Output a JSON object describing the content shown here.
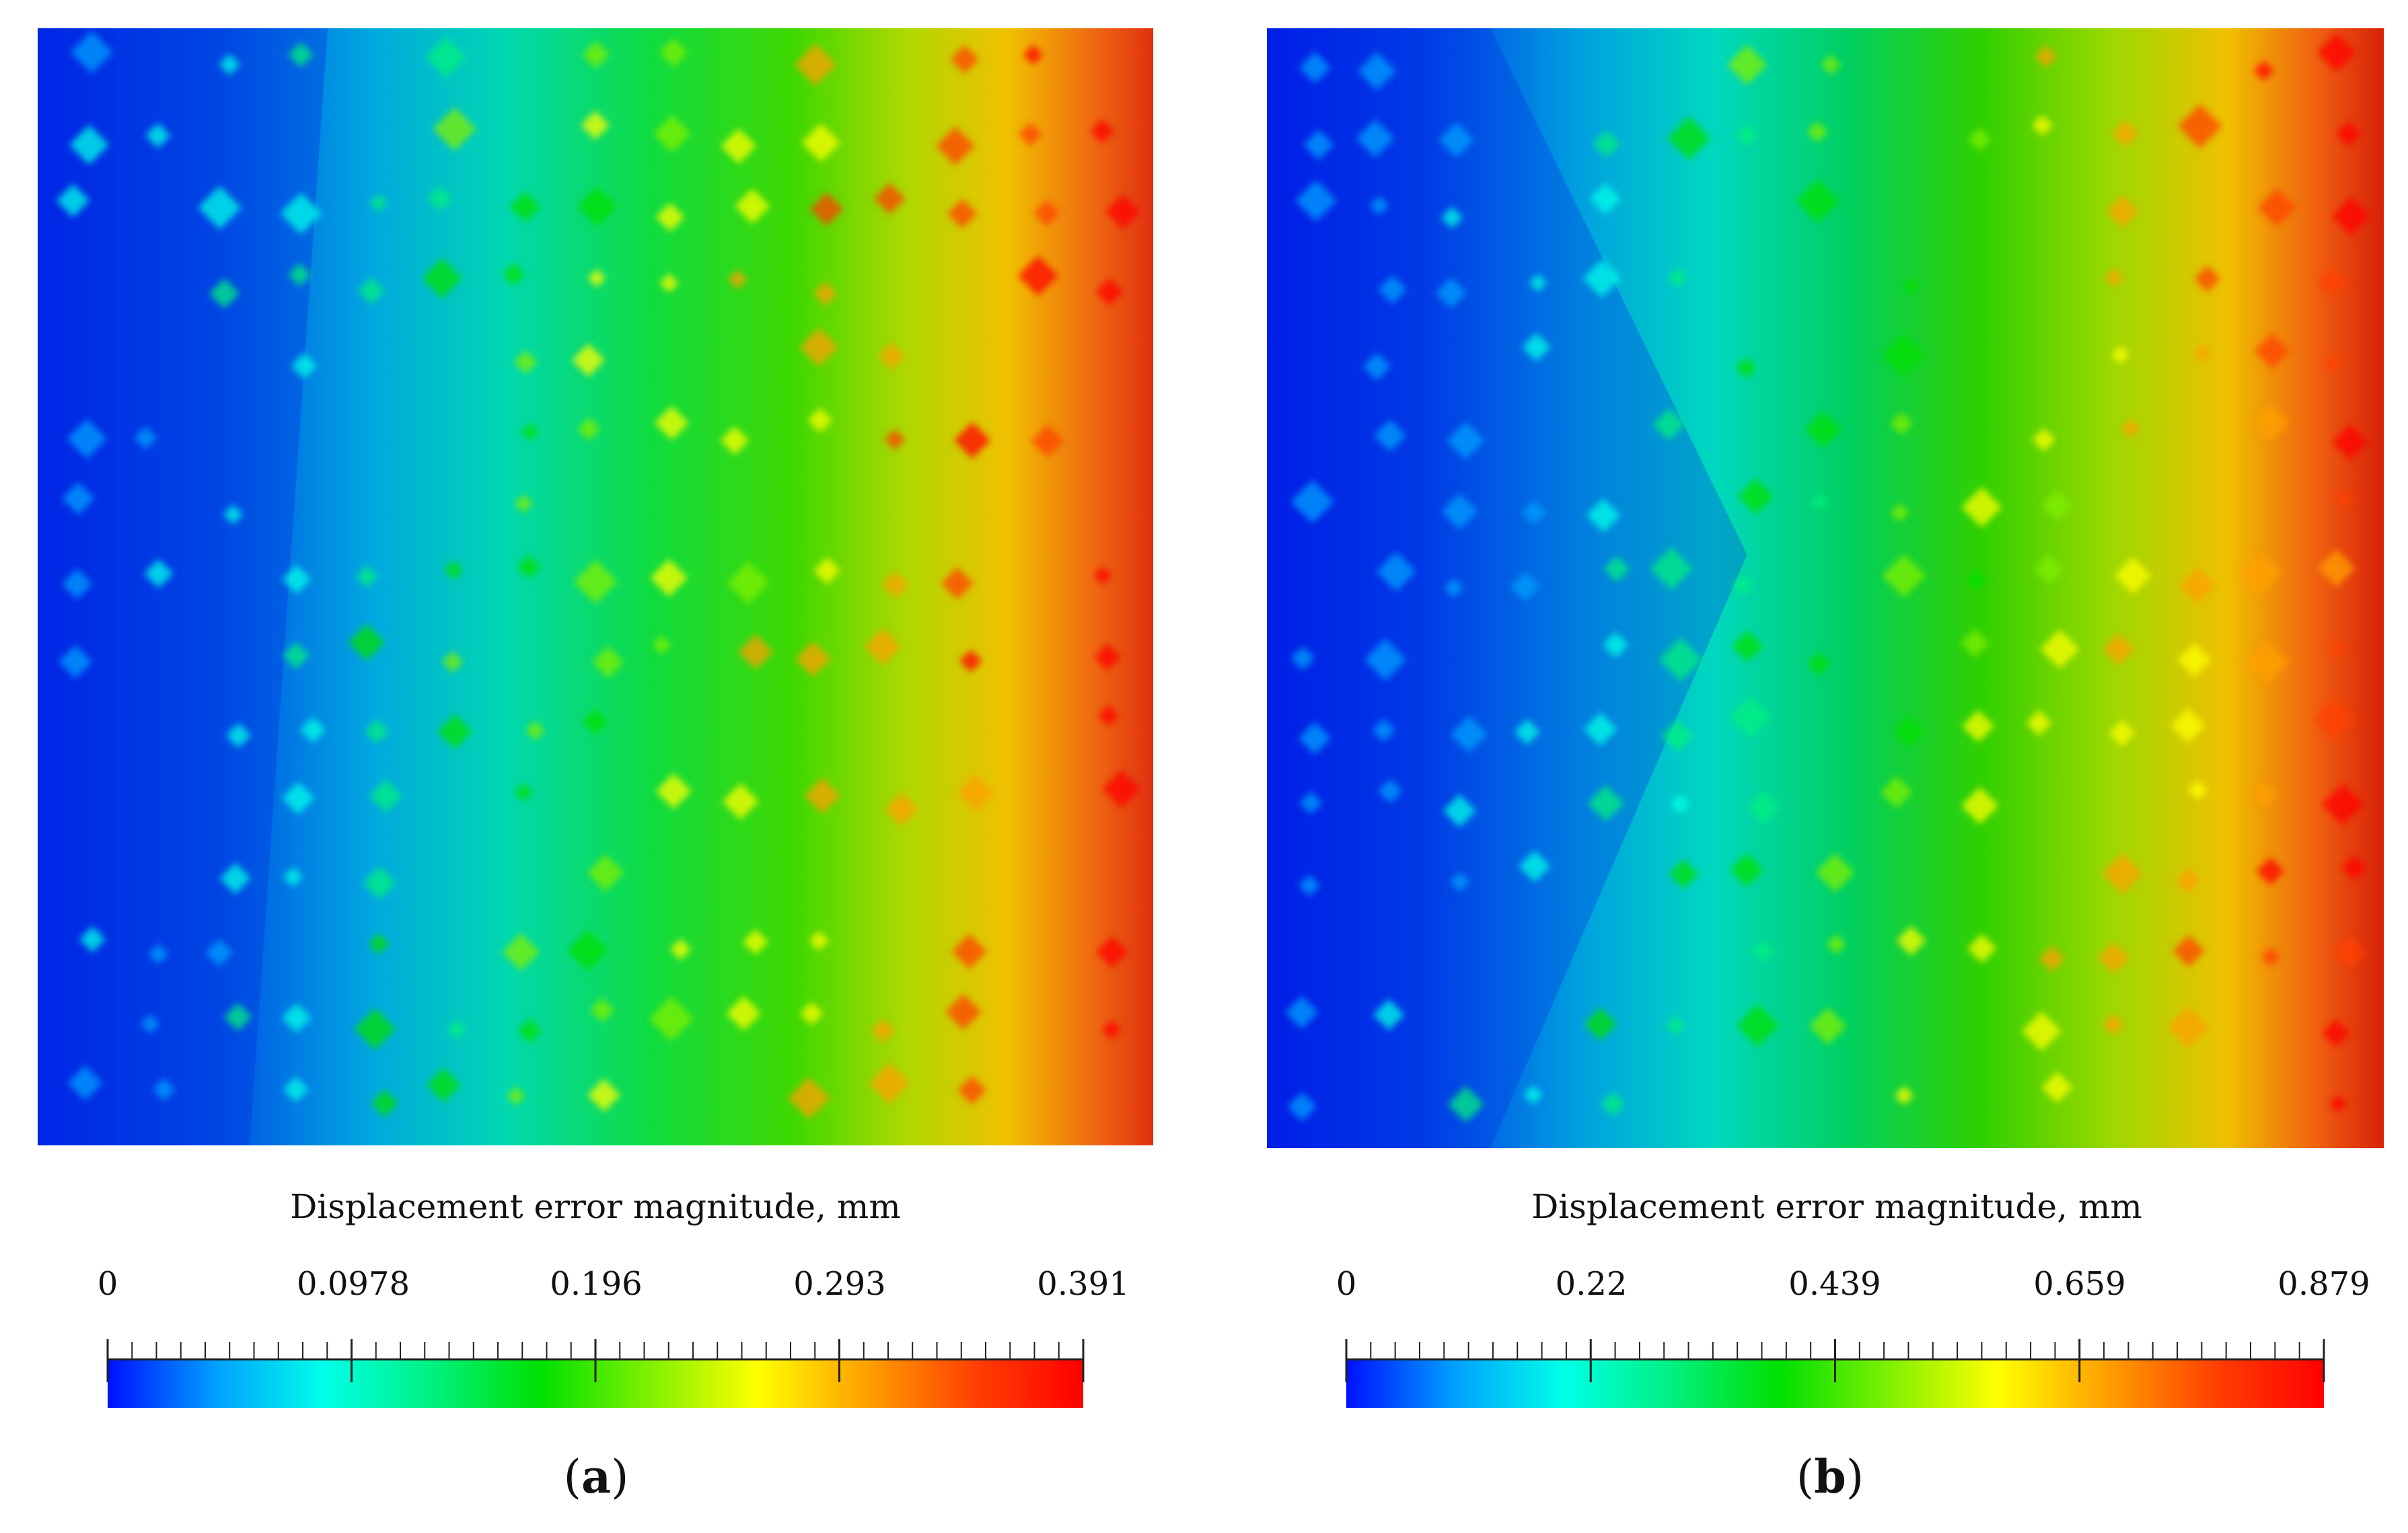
{
  "colorscale": [
    "#0010ff",
    "#00a0ff",
    "#00ffe8",
    "#00f080",
    "#00e000",
    "#80f000",
    "#ffff00",
    "#ffa000",
    "#ff4000",
    "#ff0000"
  ],
  "chart_data": [
    {
      "type": "heatmap",
      "panel_label": "a",
      "colorbar_title": "Displacement error magnitude, mm",
      "colorbar_range": [
        0,
        0.391
      ],
      "colorbar_ticks": [
        "0",
        "0.0978",
        "0.196",
        "0.293",
        "0.391"
      ],
      "field_description_values": {
        "left_edge": 0.02,
        "right_edge": 0.37
      }
    },
    {
      "type": "heatmap",
      "panel_label": "b",
      "colorbar_title": "Displacement error magnitude, mm",
      "colorbar_range": [
        0,
        0.879
      ],
      "colorbar_ticks": [
        "0",
        "0.22",
        "0.439",
        "0.659",
        "0.879"
      ],
      "field_description_values": {
        "left_edge": 0.02,
        "right_edge": 0.86
      }
    }
  ],
  "panels": {
    "a": {
      "title": "Displacement error magnitude, mm",
      "ticks": [
        "0",
        "0.0978",
        "0.196",
        "0.293",
        "0.391"
      ],
      "open": "(",
      "letter": "a",
      "close": ")"
    },
    "b": {
      "title": "Displacement error magnitude, mm",
      "ticks": [
        "0",
        "0.22",
        "0.439",
        "0.659",
        "0.879"
      ],
      "open": "(",
      "letter": "b",
      "close": ")"
    }
  }
}
